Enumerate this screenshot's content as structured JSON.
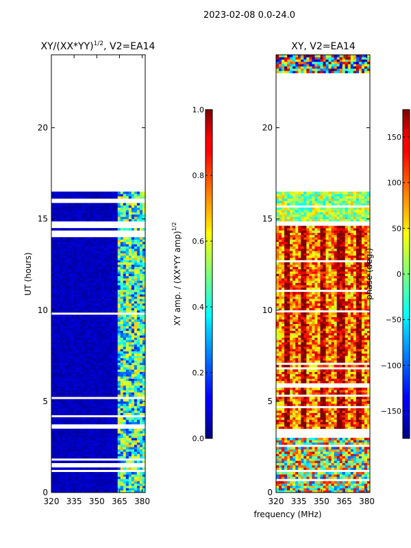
{
  "figure_title": "2023-02-08 0.0-24.0",
  "chart_data": [
    {
      "type": "heatmap",
      "title_main": "XY/(XX*YY)",
      "title_exp": "1/2",
      "title_suffix": ", V2=EA14",
      "xlabel": "",
      "ylabel": "UT (hours)",
      "xlim": [
        320,
        382
      ],
      "ylim": [
        0,
        24
      ],
      "xticks": [
        320,
        335,
        350,
        365,
        380
      ],
      "yticks": [
        0,
        5,
        10,
        15,
        20
      ],
      "data_gaps_hours": [
        [
          22.95,
          24.0
        ],
        [
          16.5,
          22.95
        ],
        [
          14.55,
          14.85
        ],
        [
          14.05,
          14.35
        ],
        [
          3.5,
          3.75
        ]
      ],
      "colorbar": {
        "label_main": "XY amp. / (XX*YY amp)",
        "label_exp": "1/2",
        "range": [
          0.0,
          1.0
        ],
        "ticks": [
          "0.0",
          "0.2",
          "0.4",
          "0.6",
          "0.8",
          "1.0"
        ]
      }
    },
    {
      "type": "heatmap",
      "title_main": "XY, V2=EA14",
      "xlabel": "frequency (MHz)",
      "ylabel": "",
      "xlim": [
        320,
        382
      ],
      "ylim": [
        0,
        24
      ],
      "xticks": [
        320,
        335,
        350,
        365,
        380
      ],
      "yticks": [
        0,
        5,
        10,
        15,
        20
      ],
      "data_gaps_hours": [
        [
          16.5,
          22.95
        ],
        [
          14.6,
          14.85
        ],
        [
          3.05,
          3.5
        ]
      ],
      "colorbar": {
        "label_main": "phase (deg.)",
        "range": [
          -180,
          180
        ],
        "ticks": [
          "−150",
          "−100",
          "−50",
          "0",
          "50",
          "100",
          "150"
        ]
      }
    }
  ]
}
